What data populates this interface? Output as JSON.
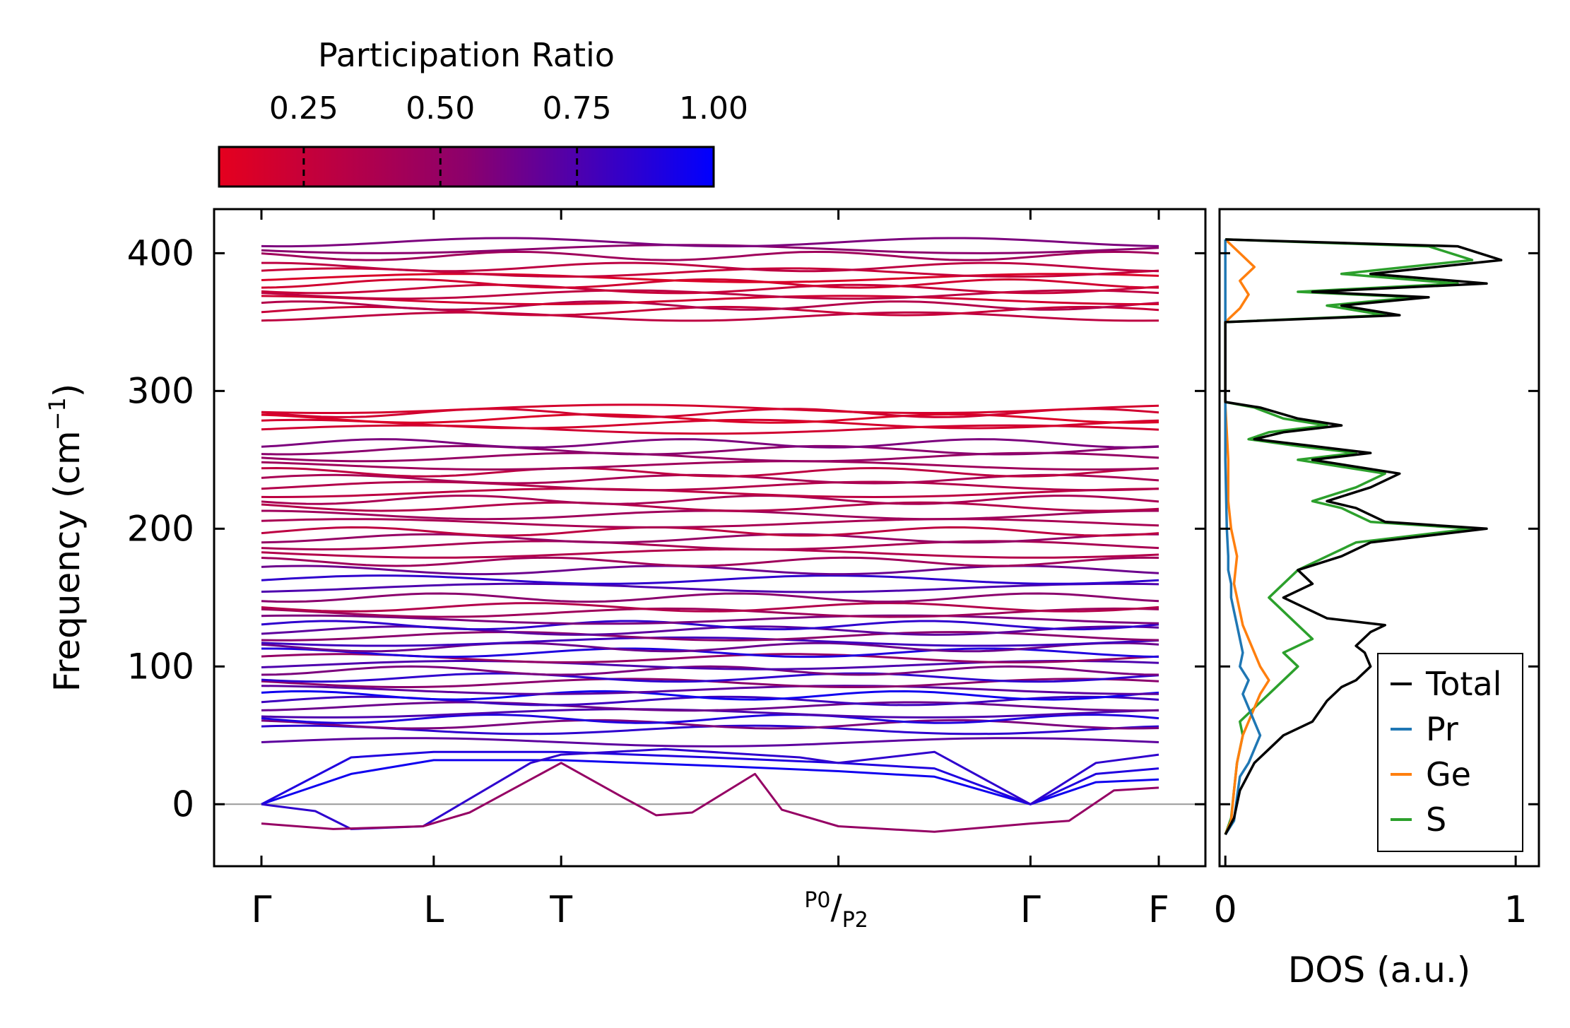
{
  "colorbar": {
    "title": "Participation Ratio",
    "ticks": [
      "0.25",
      "0.50",
      "0.75",
      "1.00"
    ],
    "tick_values": [
      0.25,
      0.5,
      0.75,
      1.0
    ],
    "range": [
      0.095,
      1.0
    ],
    "color_low": "#e5001e",
    "color_mid": "#8c006c",
    "color_high": "#0000ff"
  },
  "chart_data": [
    {
      "type": "line",
      "name": "phonon-dispersion",
      "ylabel": "Frequency (cm",
      "ylabel_sup": "−1",
      "ylabel_close": ")",
      "ylim": [
        -45,
        432
      ],
      "yticks": [
        0,
        100,
        200,
        300,
        400
      ],
      "ytick_labels": [
        "0",
        "100",
        "200",
        "300",
        "400"
      ],
      "x_kpoints": [
        {
          "label": "Γ",
          "pos": 0.0
        },
        {
          "label": "L",
          "pos": 0.192
        },
        {
          "label": "T",
          "pos": 0.334
        },
        {
          "label": "P0/P2",
          "pos": 0.643,
          "main": "P",
          "sub1": "0",
          "main2": "P",
          "sub2": "2"
        },
        {
          "label": "Γ",
          "pos": 0.857
        },
        {
          "label": "F",
          "pos": 1.0
        }
      ],
      "zero_line": 0,
      "flat_band_frequencies": [
        45,
        54,
        58,
        62,
        66,
        71,
        75,
        79,
        83,
        88,
        92,
        97,
        101,
        106,
        110,
        114,
        118,
        122,
        126,
        130,
        134,
        139,
        143,
        150,
        157,
        163,
        170,
        176,
        182,
        188,
        193,
        198,
        204,
        210,
        216,
        221,
        226,
        231,
        236,
        241,
        246,
        252,
        257,
        262,
        272,
        276,
        280,
        284,
        287,
        354,
        358,
        362,
        366,
        370,
        374,
        378,
        382,
        386,
        390,
        398,
        403,
        408
      ],
      "band_participation": [
        0.7,
        0.85,
        0.6,
        0.9,
        0.75,
        0.65,
        0.8,
        0.95,
        0.7,
        0.55,
        0.85,
        0.6,
        0.75,
        0.5,
        0.9,
        0.65,
        0.8,
        0.55,
        0.7,
        0.85,
        0.6,
        0.45,
        0.35,
        0.55,
        0.75,
        0.85,
        0.65,
        0.45,
        0.35,
        0.4,
        0.5,
        0.3,
        0.4,
        0.45,
        0.35,
        0.4,
        0.3,
        0.35,
        0.4,
        0.3,
        0.45,
        0.5,
        0.55,
        0.6,
        0.2,
        0.18,
        0.15,
        0.2,
        0.18,
        0.3,
        0.25,
        0.35,
        0.2,
        0.3,
        0.25,
        0.2,
        0.15,
        0.25,
        0.3,
        0.45,
        0.55,
        0.6
      ],
      "acoustic_branches": [
        {
          "name": "acoustic-1",
          "participation": 0.95,
          "points": [
            [
              0,
              0
            ],
            [
              0.1,
              22
            ],
            [
              0.192,
              32
            ],
            [
              0.334,
              32
            ],
            [
              0.5,
              28
            ],
            [
              0.643,
              24
            ],
            [
              0.75,
              20
            ],
            [
              0.857,
              0
            ],
            [
              0.93,
              16
            ],
            [
              1.0,
              18
            ]
          ]
        },
        {
          "name": "acoustic-2",
          "participation": 0.9,
          "points": [
            [
              0,
              0
            ],
            [
              0.1,
              34
            ],
            [
              0.192,
              38
            ],
            [
              0.334,
              38
            ],
            [
              0.5,
              34
            ],
            [
              0.643,
              30
            ],
            [
              0.75,
              26
            ],
            [
              0.857,
              0
            ],
            [
              0.93,
              22
            ],
            [
              1.0,
              26
            ]
          ]
        },
        {
          "name": "acoustic-3",
          "participation": 0.85,
          "points": [
            [
              0,
              0
            ],
            [
              0.06,
              -5
            ],
            [
              0.1,
              -18
            ],
            [
              0.18,
              -16
            ],
            [
              0.3,
              30
            ],
            [
              0.334,
              36
            ],
            [
              0.45,
              40
            ],
            [
              0.6,
              34
            ],
            [
              0.643,
              30
            ],
            [
              0.75,
              38
            ],
            [
              0.857,
              0
            ],
            [
              0.93,
              30
            ],
            [
              1.0,
              36
            ]
          ]
        },
        {
          "name": "soft-mode",
          "participation": 0.5,
          "points": [
            [
              0,
              -14
            ],
            [
              0.08,
              -18
            ],
            [
              0.18,
              -16
            ],
            [
              0.232,
              -6
            ],
            [
              0.334,
              30
            ],
            [
              0.4,
              6
            ],
            [
              0.44,
              -8
            ],
            [
              0.48,
              -6
            ],
            [
              0.55,
              22
            ],
            [
              0.58,
              -4
            ],
            [
              0.643,
              -16
            ],
            [
              0.75,
              -20
            ],
            [
              0.857,
              -14
            ],
            [
              0.9,
              -12
            ],
            [
              0.95,
              10
            ],
            [
              1.0,
              12
            ]
          ]
        }
      ]
    },
    {
      "type": "line",
      "name": "density-of-states",
      "xlabel": "DOS (a.u.)",
      "xlim": [
        -0.02,
        1.08
      ],
      "xticks": [
        0,
        1
      ],
      "xtick_labels": [
        "0",
        "1"
      ],
      "ylim": [
        -45,
        432
      ],
      "legend_position": "lower-right",
      "series": [
        {
          "name": "Total",
          "color": "#000000",
          "values": [
            [
              0,
              -22
            ],
            [
              0.03,
              -10
            ],
            [
              0.05,
              10
            ],
            [
              0.1,
              30
            ],
            [
              0.15,
              40
            ],
            [
              0.2,
              50
            ],
            [
              0.3,
              60
            ],
            [
              0.35,
              75
            ],
            [
              0.4,
              85
            ],
            [
              0.45,
              90
            ],
            [
              0.5,
              100
            ],
            [
              0.48,
              110
            ],
            [
              0.45,
              115
            ],
            [
              0.5,
              125
            ],
            [
              0.55,
              130
            ],
            [
              0.35,
              135
            ],
            [
              0.3,
              140
            ],
            [
              0.25,
              145
            ],
            [
              0.2,
              150
            ],
            [
              0.3,
              160
            ],
            [
              0.25,
              170
            ],
            [
              0.4,
              180
            ],
            [
              0.5,
              190
            ],
            [
              0.9,
              200
            ],
            [
              0.55,
              205
            ],
            [
              0.45,
              215
            ],
            [
              0.35,
              220
            ],
            [
              0.5,
              230
            ],
            [
              0.6,
              240
            ],
            [
              0.45,
              245
            ],
            [
              0.3,
              250
            ],
            [
              0.5,
              255
            ],
            [
              0.3,
              260
            ],
            [
              0.1,
              265
            ],
            [
              0.2,
              270
            ],
            [
              0.4,
              275
            ],
            [
              0.25,
              280
            ],
            [
              0.12,
              288
            ],
            [
              0,
              292
            ],
            [
              0,
              350
            ],
            [
              0.6,
              355
            ],
            [
              0.4,
              362
            ],
            [
              0.7,
              368
            ],
            [
              0.3,
              372
            ],
            [
              0.9,
              378
            ],
            [
              0.5,
              385
            ],
            [
              0.95,
              395
            ],
            [
              0.8,
              405
            ],
            [
              0,
              410
            ]
          ]
        },
        {
          "name": "Pr",
          "color": "#1f77b4",
          "values": [
            [
              0,
              -22
            ],
            [
              0.03,
              -12
            ],
            [
              0.04,
              5
            ],
            [
              0.05,
              20
            ],
            [
              0.08,
              30
            ],
            [
              0.1,
              40
            ],
            [
              0.12,
              50
            ],
            [
              0.1,
              60
            ],
            [
              0.08,
              70
            ],
            [
              0.06,
              80
            ],
            [
              0.08,
              90
            ],
            [
              0.05,
              100
            ],
            [
              0.06,
              110
            ],
            [
              0.05,
              120
            ],
            [
              0.04,
              130
            ],
            [
              0.03,
              140
            ],
            [
              0.02,
              150
            ],
            [
              0.02,
              160
            ],
            [
              0.01,
              170
            ],
            [
              0.01,
              180
            ],
            [
              0.005,
              200
            ],
            [
              0,
              250
            ],
            [
              0,
              410
            ]
          ]
        },
        {
          "name": "Ge",
          "color": "#ff7f0e",
          "values": [
            [
              0,
              -22
            ],
            [
              0.02,
              -12
            ],
            [
              0.03,
              10
            ],
            [
              0.04,
              30
            ],
            [
              0.06,
              50
            ],
            [
              0.08,
              60
            ],
            [
              0.1,
              70
            ],
            [
              0.12,
              80
            ],
            [
              0.15,
              90
            ],
            [
              0.12,
              100
            ],
            [
              0.1,
              110
            ],
            [
              0.08,
              120
            ],
            [
              0.06,
              130
            ],
            [
              0.05,
              140
            ],
            [
              0.04,
              150
            ],
            [
              0.03,
              160
            ],
            [
              0.04,
              180
            ],
            [
              0.02,
              200
            ],
            [
              0.01,
              220
            ],
            [
              0.01,
              250
            ],
            [
              0,
              290
            ],
            [
              0,
              350
            ],
            [
              0.05,
              360
            ],
            [
              0.08,
              370
            ],
            [
              0.05,
              380
            ],
            [
              0.1,
              390
            ],
            [
              0.05,
              400
            ],
            [
              0,
              410
            ]
          ]
        },
        {
          "name": "S",
          "color": "#2ca02c",
          "values": [
            [
              0,
              -22
            ],
            [
              0.02,
              -10
            ],
            [
              0.03,
              10
            ],
            [
              0.04,
              30
            ],
            [
              0.06,
              50
            ],
            [
              0.05,
              60
            ],
            [
              0.1,
              70
            ],
            [
              0.15,
              80
            ],
            [
              0.2,
              90
            ],
            [
              0.25,
              100
            ],
            [
              0.2,
              110
            ],
            [
              0.3,
              120
            ],
            [
              0.25,
              130
            ],
            [
              0.2,
              140
            ],
            [
              0.15,
              150
            ],
            [
              0.2,
              160
            ],
            [
              0.25,
              170
            ],
            [
              0.35,
              180
            ],
            [
              0.45,
              190
            ],
            [
              0.85,
              200
            ],
            [
              0.5,
              205
            ],
            [
              0.4,
              215
            ],
            [
              0.3,
              220
            ],
            [
              0.45,
              230
            ],
            [
              0.55,
              240
            ],
            [
              0.4,
              245
            ],
            [
              0.25,
              250
            ],
            [
              0.45,
              255
            ],
            [
              0.25,
              260
            ],
            [
              0.08,
              265
            ],
            [
              0.15,
              270
            ],
            [
              0.35,
              275
            ],
            [
              0.2,
              280
            ],
            [
              0.1,
              288
            ],
            [
              0,
              292
            ],
            [
              0,
              350
            ],
            [
              0.55,
              355
            ],
            [
              0.35,
              362
            ],
            [
              0.65,
              368
            ],
            [
              0.25,
              372
            ],
            [
              0.8,
              378
            ],
            [
              0.4,
              385
            ],
            [
              0.85,
              395
            ],
            [
              0.7,
              405
            ],
            [
              0,
              410
            ]
          ]
        }
      ]
    }
  ]
}
